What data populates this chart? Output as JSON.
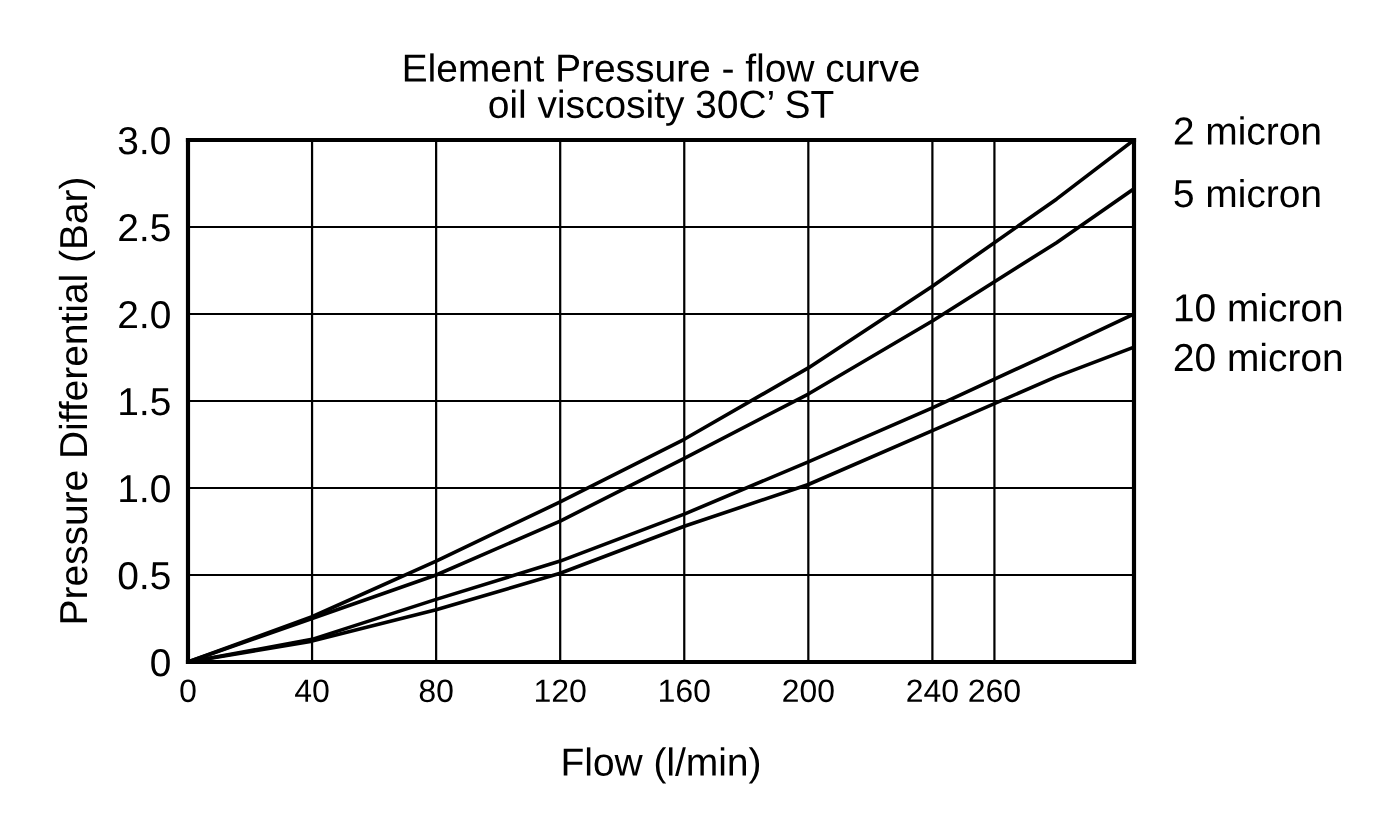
{
  "chart_data": {
    "type": "line",
    "title": "Element Pressure - flow curve\noil viscosity 30C’ ST",
    "xlabel": "Flow (l/min)",
    "ylabel": "Pressure Differential (Bar)",
    "x": [
      0,
      40,
      80,
      120,
      160,
      200,
      240,
      280,
      305
    ],
    "series": [
      {
        "name": "2 micron",
        "color": "#000000",
        "values": [
          0,
          0.26,
          0.58,
          0.92,
          1.28,
          1.69,
          2.16,
          2.66,
          3.0
        ]
      },
      {
        "name": "5 micron",
        "color": "#000000",
        "values": [
          0,
          0.25,
          0.5,
          0.81,
          1.17,
          1.54,
          1.96,
          2.41,
          2.72
        ]
      },
      {
        "name": "10 micron",
        "color": "#000000",
        "values": [
          0,
          0.13,
          0.36,
          0.58,
          0.85,
          1.15,
          1.46,
          1.79,
          2.0
        ]
      },
      {
        "name": "20 micron",
        "color": "#000000",
        "values": [
          0,
          0.12,
          0.3,
          0.51,
          0.78,
          1.02,
          1.33,
          1.64,
          1.81
        ]
      }
    ],
    "xlim": [
      0,
      305
    ],
    "xticks": [
      0,
      40,
      80,
      120,
      160,
      200,
      240,
      260
    ],
    "ylim": [
      0,
      3
    ],
    "yticks": [
      0,
      0.5,
      {
        "value": 1,
        "label": "1.0"
      },
      1.5,
      {
        "value": 2,
        "label": "2.0"
      },
      2.5,
      {
        "value": 3,
        "label": "3.0"
      }
    ],
    "grid": true,
    "legend": false,
    "marker": "none",
    "line_style": "solid"
  }
}
